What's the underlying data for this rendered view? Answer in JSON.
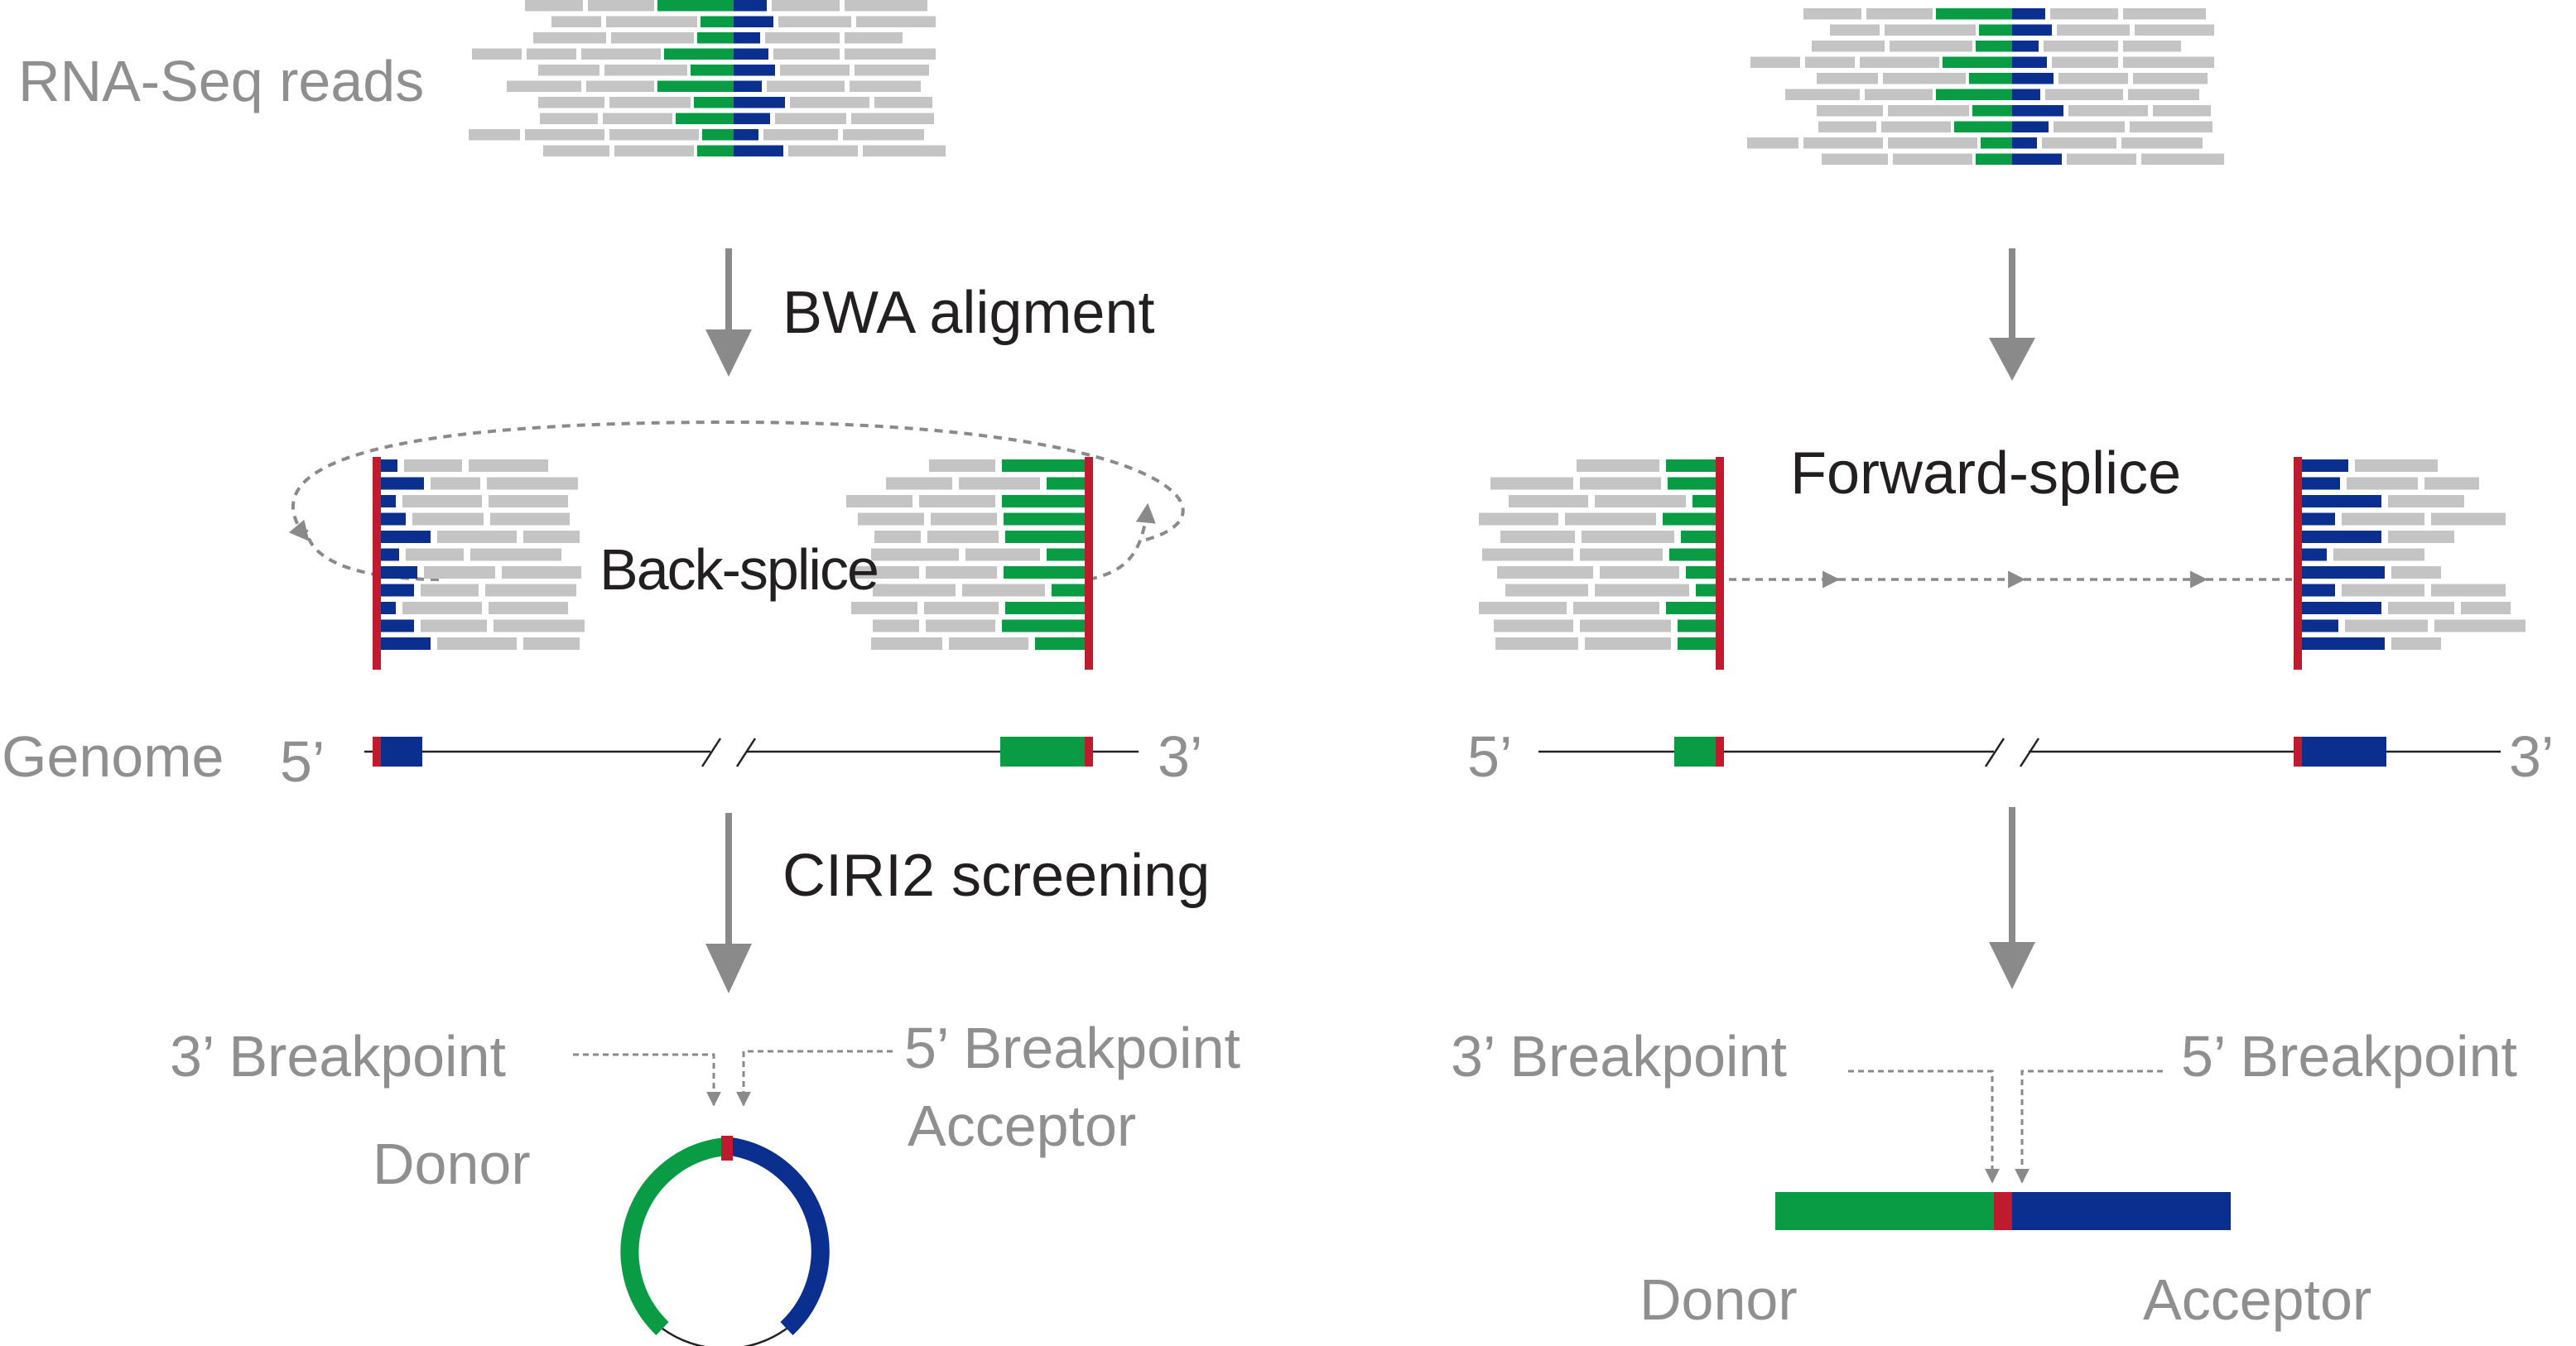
{
  "colors": {
    "read_gray": "#c4c4c4",
    "exon_green": "#0a9b45",
    "exon_blue": "#0b2f8f",
    "junction_red": "#c01a2e",
    "arrow_gray": "#8a8a8a",
    "label_gray": "#8f8f8f",
    "label_dark": "#231f20"
  },
  "left": {
    "reads_label": "RNA-Seq reads",
    "step1_label": "BWA aligment",
    "splice_label": "Back-splice",
    "genome_label": "Genome",
    "five_prime": "5’",
    "three_prime": "3’",
    "step2_label": "CIRI2 screening",
    "bp3_label": "3’ Breakpoint",
    "bp5_label": "5’ Breakpoint",
    "donor_label": "Donor",
    "acceptor_label": "Acceptor"
  },
  "right": {
    "splice_label": "Forward-splice",
    "five_prime": "5’",
    "three_prime": "3’",
    "bp3_label": "3’ Breakpoint",
    "bp5_label": "5’ Breakpoint",
    "donor_label": "Donor",
    "acceptor_label": "Acceptor"
  }
}
